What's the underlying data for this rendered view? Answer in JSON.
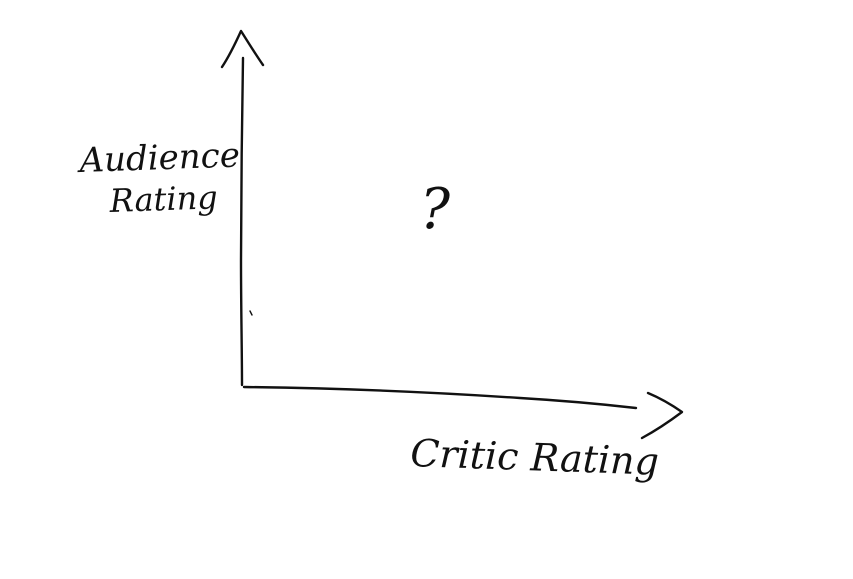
{
  "diagram": {
    "y_axis_label_line1": "Audience",
    "y_axis_label_line2": "Rating",
    "x_axis_label": "Critic Rating",
    "center_mark": "?",
    "ink_color": "#111111",
    "background_color": "#ffffff"
  }
}
